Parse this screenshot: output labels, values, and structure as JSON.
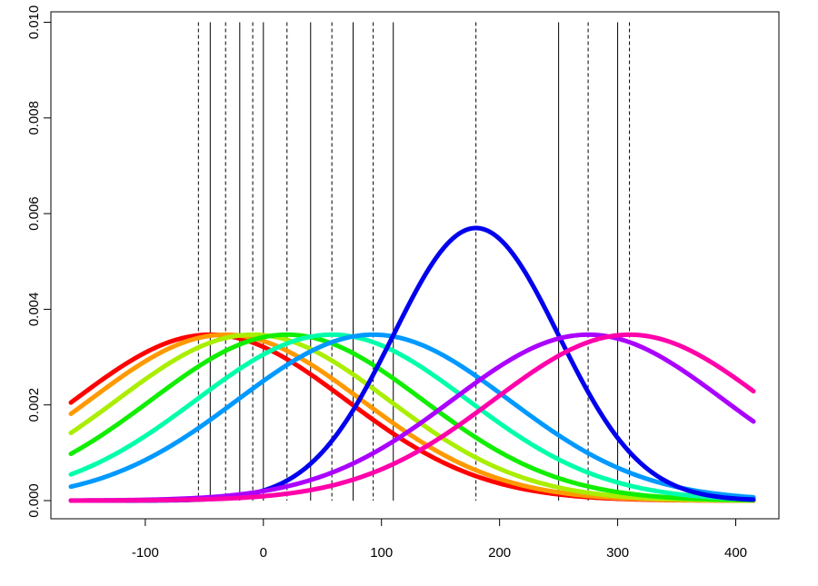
{
  "chart_data": {
    "type": "line",
    "title": "",
    "xlabel": "",
    "ylabel": "",
    "xlim": [
      -163,
      415
    ],
    "ylim": [
      0,
      0.0102
    ],
    "x_ticks": [
      {
        "value": -100,
        "label": "-100"
      },
      {
        "value": 0,
        "label": "0"
      },
      {
        "value": 100,
        "label": "100"
      },
      {
        "value": 200,
        "label": "200"
      },
      {
        "value": 300,
        "label": "300"
      },
      {
        "value": 400,
        "label": "400"
      }
    ],
    "y_ticks": [
      {
        "value": 0.0,
        "label": "0.000"
      },
      {
        "value": 0.002,
        "label": "0.002"
      },
      {
        "value": 0.004,
        "label": "0.004"
      },
      {
        "value": 0.006,
        "label": "0.006"
      },
      {
        "value": 0.008,
        "label": "0.008"
      },
      {
        "value": 0.01,
        "label": "0.010"
      }
    ],
    "grid": false,
    "legend": "none",
    "series": [
      {
        "color": "#ff0000",
        "mean": -45,
        "sd": 115
      },
      {
        "color": "#ff9900",
        "mean": -32,
        "sd": 115
      },
      {
        "color": "#aaee00",
        "mean": -9,
        "sd": 115
      },
      {
        "color": "#11ee00",
        "mean": 20,
        "sd": 115
      },
      {
        "color": "#00ffaa",
        "mean": 58,
        "sd": 115
      },
      {
        "color": "#0099ff",
        "mean": 93,
        "sd": 115
      },
      {
        "color": "#0000ee",
        "mean": 180,
        "sd": 70
      },
      {
        "color": "#aa00ff",
        "mean": 275,
        "sd": 115
      },
      {
        "color": "#ff00aa",
        "mean": 310,
        "sd": 115
      }
    ],
    "vlines_solid": [
      -45,
      -20,
      0,
      40,
      76,
      110,
      250,
      300
    ],
    "vlines_dashed": [
      -55,
      -32,
      -9,
      20,
      58,
      93,
      180,
      275,
      310
    ],
    "vline_top": 0.01
  }
}
